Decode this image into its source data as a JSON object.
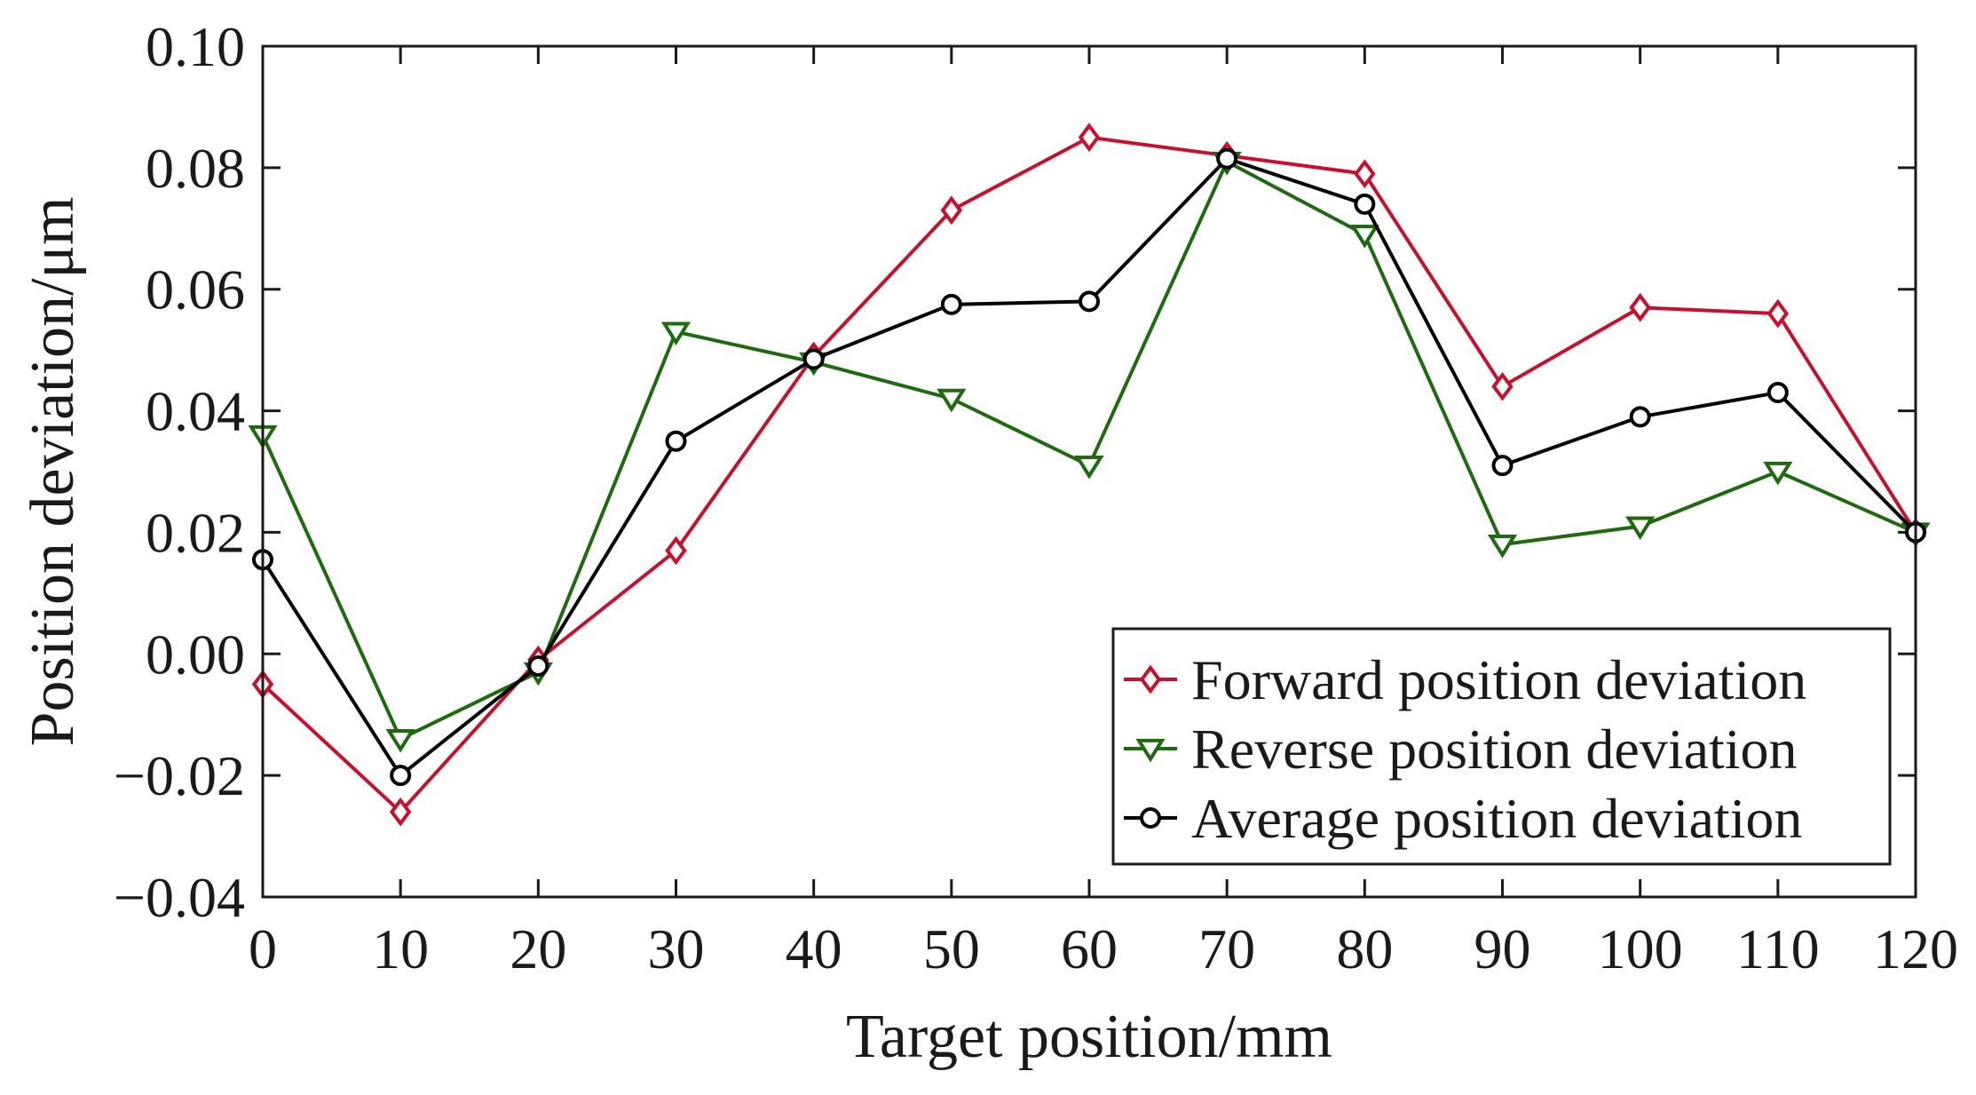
{
  "chart_data": {
    "type": "line",
    "title": "",
    "xlabel": "Target position/mm",
    "ylabel": "Position deviation/μm",
    "xlim": [
      0,
      120
    ],
    "ylim": [
      -0.04,
      0.1
    ],
    "x": [
      0,
      10,
      20,
      30,
      40,
      50,
      60,
      70,
      80,
      90,
      100,
      110,
      120
    ],
    "x_ticks": [
      0,
      10,
      20,
      30,
      40,
      50,
      60,
      70,
      80,
      90,
      100,
      110,
      120
    ],
    "x_tick_labels": [
      "0",
      "10",
      "20",
      "30",
      "40",
      "50",
      "60",
      "70",
      "80",
      "90",
      "100",
      "110",
      "120"
    ],
    "y_ticks": [
      -0.04,
      -0.02,
      0.0,
      0.02,
      0.04,
      0.06,
      0.08,
      0.1
    ],
    "y_tick_labels": [
      "−0.04",
      "−0.02",
      "0.00",
      "0.02",
      "0.04",
      "0.06",
      "0.08",
      "0.10"
    ],
    "grid": false,
    "legend_position": "bottom-right",
    "series": [
      {
        "name": "Forward position deviation",
        "color": "#c8102e",
        "marker": "diamond",
        "values": [
          -0.005,
          -0.026,
          -0.001,
          0.017,
          0.049,
          0.073,
          0.085,
          0.082,
          0.079,
          0.044,
          0.057,
          0.056,
          0.02
        ]
      },
      {
        "name": "Reverse position deviation",
        "color": "#1e6b0f",
        "marker": "triangle-down",
        "values": [
          0.036,
          -0.014,
          -0.003,
          0.053,
          0.048,
          0.042,
          0.031,
          0.081,
          0.069,
          0.018,
          0.021,
          0.03,
          0.02
        ]
      },
      {
        "name": "Average position deviation",
        "color": "#000000",
        "marker": "circle",
        "values": [
          0.0155,
          -0.02,
          -0.002,
          0.035,
          0.0485,
          0.0575,
          0.058,
          0.0815,
          0.074,
          0.031,
          0.039,
          0.043,
          0.02
        ]
      }
    ]
  }
}
